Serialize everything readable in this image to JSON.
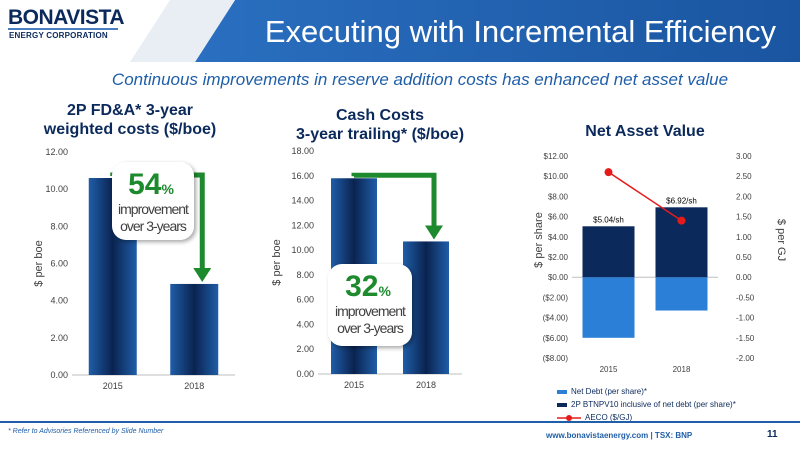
{
  "header": {
    "logo_name": "BONAVISTA",
    "logo_sub": "ENERGY CORPORATION",
    "title": "Executing with Incremental Efficiency",
    "subtitle": "Continuous improvements in reserve addition costs has enhanced net asset value"
  },
  "colors": {
    "banner": "#1f5ea8",
    "navy": "#0b2a5b",
    "bar_dark": "#0b2a5b",
    "bar_light": "#2c7fd6",
    "arrow_green": "#1e8a2e",
    "aeco_red": "#e51b1b"
  },
  "footer": {
    "footnote": "* Refer to Advisories Referenced by Slide Number",
    "website": "www.bonavistaenergy.com  |  TSX: BNP",
    "page": "11"
  },
  "chart_data": [
    {
      "type": "bar",
      "title_line1": "2P FD&A* 3-year",
      "title_line2": "weighted costs ($/boe)",
      "categories": [
        "2015",
        "2018"
      ],
      "values": [
        10.6,
        4.9
      ],
      "ylabel": "$ per boe",
      "ylim": [
        0,
        12
      ],
      "yticks": [
        "0.00",
        "2.00",
        "4.00",
        "6.00",
        "8.00",
        "10.00",
        "12.00"
      ],
      "callout": {
        "number": "54",
        "unit": "%",
        "line1": "improvement",
        "line2": "over 3-years"
      }
    },
    {
      "type": "bar",
      "title_line1": "Cash Costs",
      "title_line2": "3-year trailing* ($/boe)",
      "categories": [
        "2015",
        "2018"
      ],
      "values": [
        15.8,
        10.7
      ],
      "ylabel": "$ per boe",
      "ylim": [
        0,
        18
      ],
      "yticks": [
        "0.00",
        "2.00",
        "4.00",
        "6.00",
        "8.00",
        "10.00",
        "12.00",
        "14.00",
        "16.00",
        "18.00"
      ],
      "callout": {
        "number": "32",
        "unit": "%",
        "line1": "improvement",
        "line2": "over 3-years"
      }
    },
    {
      "type": "bar",
      "title": "Net Asset Value",
      "categories": [
        "2015",
        "2018"
      ],
      "series": [
        {
          "name": "Net Debt (per share)*",
          "values": [
            -6.0,
            -3.3
          ]
        },
        {
          "name": "2P BTNPV10 inclusive of net debt (per share)*",
          "values": [
            5.04,
            6.92
          ]
        },
        {
          "name": "AECO ($/GJ)",
          "values": [
            2.6,
            1.4
          ]
        }
      ],
      "data_labels": [
        "$5.04/sh",
        "$6.92/sh"
      ],
      "ylabel": "$ per share",
      "ylim": [
        -8,
        12
      ],
      "yticks": [
        "($8.00)",
        "($6.00)",
        "($4.00)",
        "($2.00)",
        "$0.00",
        "$2.00",
        "$4.00",
        "$6.00",
        "$8.00",
        "$10.00",
        "$12.00"
      ],
      "y2label": "$ per GJ",
      "y2lim": [
        -2,
        3
      ],
      "y2ticks": [
        "-2.00",
        "-1.50",
        "-1.00",
        "-0.50",
        "0.00",
        "0.50",
        "1.00",
        "1.50",
        "2.00",
        "2.50",
        "3.00"
      ]
    }
  ]
}
